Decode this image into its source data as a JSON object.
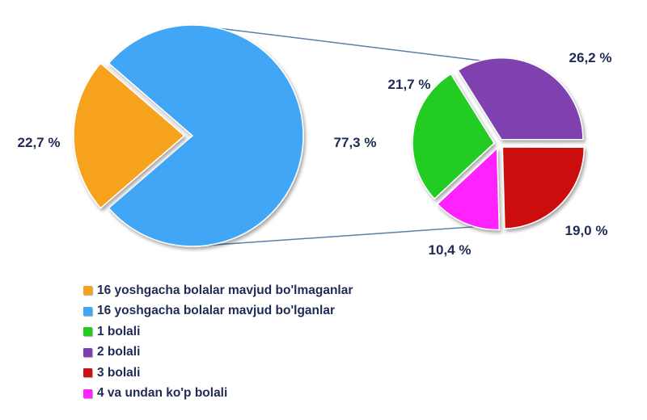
{
  "chart_data": {
    "type": "pie",
    "main_pie": {
      "slices": [
        {
          "name": "16 yoshgacha bolalar mavjud bo'lmaganlar",
          "value": 22.7,
          "label": "22,7 %",
          "color": "#f7a21b"
        },
        {
          "name": "16 yoshgacha bolalar mavjud bo'lganlar",
          "value": 77.3,
          "label": "77,3 %",
          "color": "#41a6f5"
        }
      ]
    },
    "breakdown_pie": {
      "of": "16 yoshgacha bolalar mavjud bo'lganlar",
      "slices": [
        {
          "name": "1 bolali",
          "value": 21.7,
          "label": "21,7 %",
          "color": "#22cc22"
        },
        {
          "name": "2 bolali",
          "value": 26.2,
          "label": "26,2 %",
          "color": "#7f3fb0"
        },
        {
          "name": "3 bolali",
          "value": 19.0,
          "label": "19,0 %",
          "color": "#cc1111"
        },
        {
          "name": "4 va undan ko'p bolali",
          "value": 10.4,
          "label": "10,4 %",
          "color": "#ff22ff"
        }
      ]
    },
    "legend": [
      {
        "label": "16 yoshgacha bolalar mavjud bo'lmaganlar",
        "color": "#f7a21b"
      },
      {
        "label": "16 yoshgacha bolalar mavjud bo'lganlar",
        "color": "#41a6f5"
      },
      {
        "label": "1 bolali",
        "color": "#22cc22"
      },
      {
        "label": "2 bolali",
        "color": "#7f3fb0"
      },
      {
        "label": "3 bolali",
        "color": "#cc1111"
      },
      {
        "label": "4 va undan ko'p bolali",
        "color": "#ff22ff"
      }
    ],
    "legend_placement": "bottom-left"
  }
}
